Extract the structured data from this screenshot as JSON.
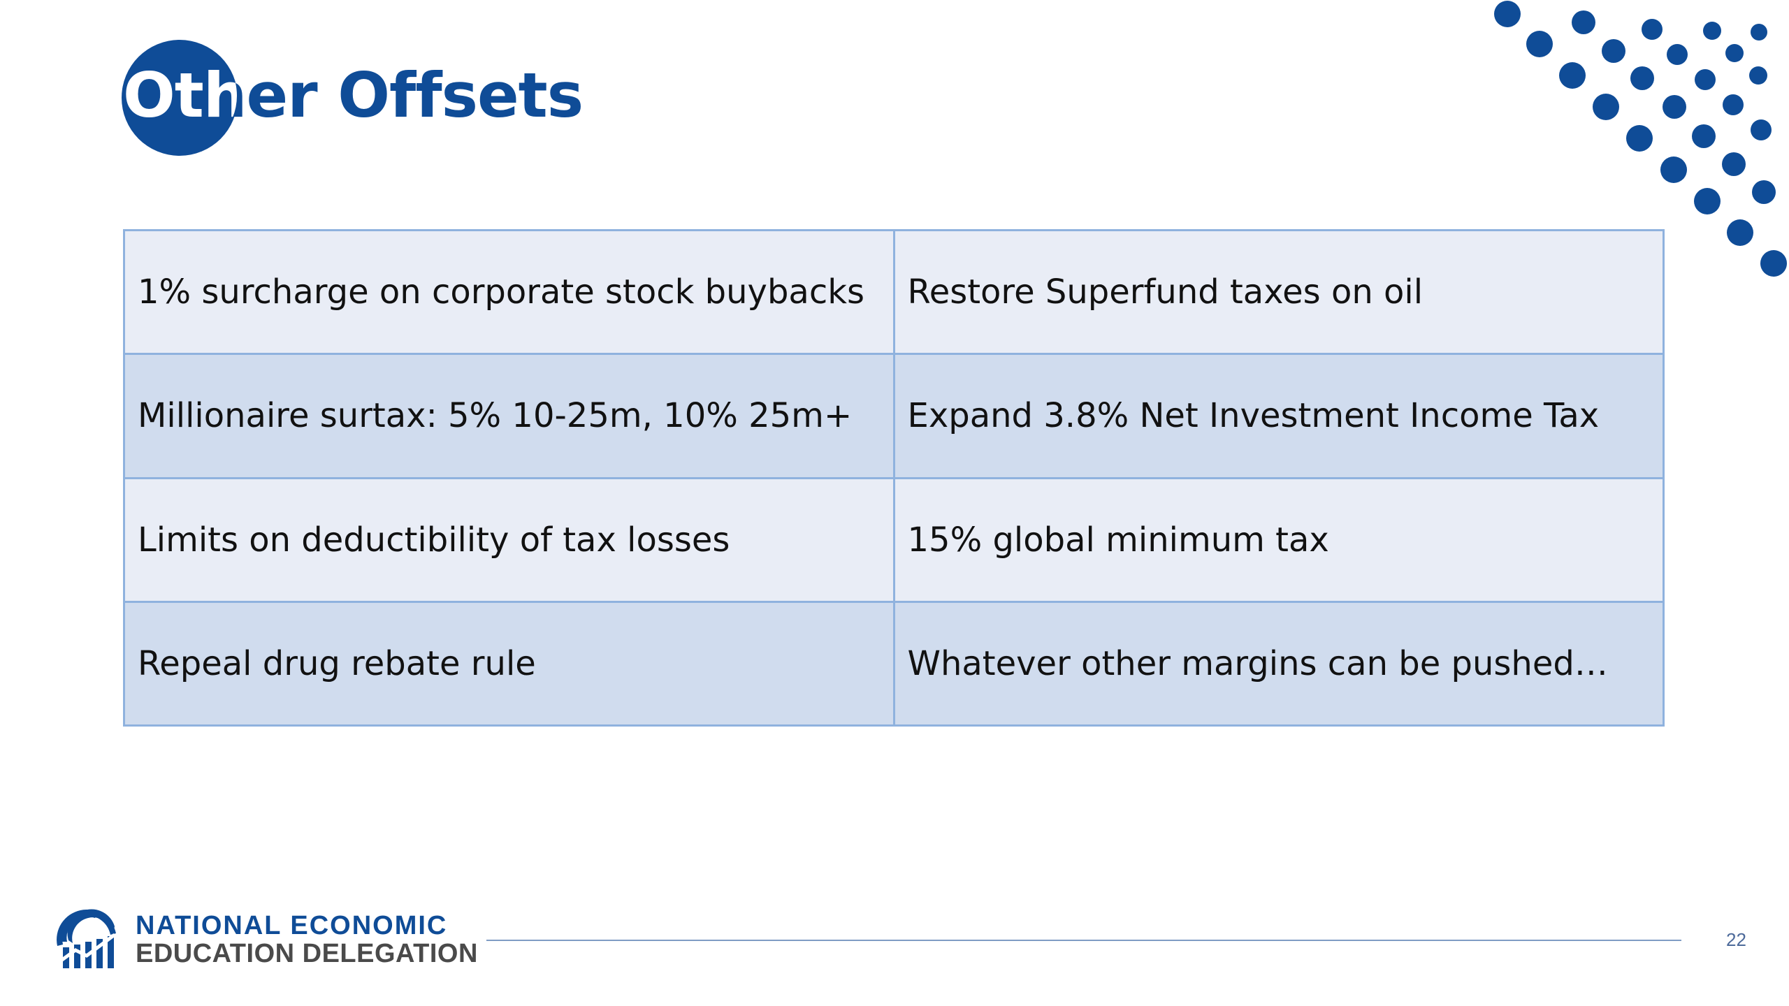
{
  "slide": {
    "title": "Other Offsets",
    "page_number": "22"
  },
  "table": {
    "rows": [
      {
        "left": "1% surcharge on corporate stock buybacks",
        "right": "Restore Superfund taxes on oil"
      },
      {
        "left": "Millionaire surtax: 5% 10-25m, 10% 25m+",
        "right": "Expand 3.8% Net Investment Income Tax"
      },
      {
        "left": "Limits on deductibility of tax losses",
        "right": "15% global minimum tax"
      },
      {
        "left": "Repeal drug rebate rule",
        "right": "Whatever other margins can be pushed…"
      }
    ]
  },
  "footer": {
    "org_line_1": "NATIONAL ECONOMIC",
    "org_line_2": "EDUCATION DELEGATION",
    "logo_icon": "columns-arch-icon"
  },
  "colors": {
    "brand_blue": "#0f4c97",
    "table_border": "#8fb2de",
    "row_light": "#e9edf6",
    "row_dark": "#d0dcee"
  }
}
